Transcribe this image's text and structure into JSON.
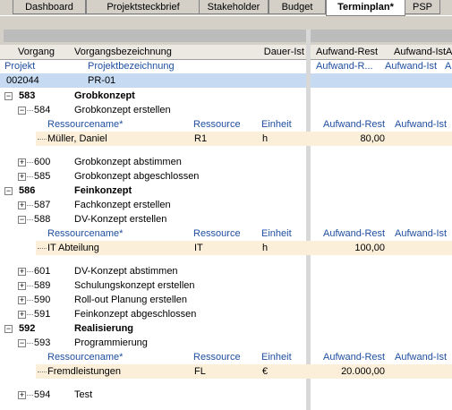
{
  "tabs": [
    "Dashboard",
    "Projektsteckbrief",
    "Stakeholder",
    "Budget",
    "Terminplan*",
    "PSP"
  ],
  "columns": [
    "Vorgang",
    "Vorgangsbezeichnung",
    "Dauer-Ist",
    "Aufwand-Rest",
    "Aufwand-Ist",
    "A"
  ],
  "project_header": [
    "Projekt",
    "Projektbezeichnung",
    "Aufwand-R...",
    "Aufwand-Ist",
    "Aufwand-Ist"
  ],
  "project": {
    "id": "002044",
    "name": "PR-01"
  },
  "resource_header": [
    "Ressourcename*",
    "Ressource",
    "Einheit",
    "Aufwand-Rest",
    "Aufwand-Ist"
  ],
  "phases": [
    {
      "id": "583",
      "name": "Grobkonzept",
      "tasks": [
        {
          "id": "584",
          "name": "Grobkonzept erstellen",
          "resources": [
            {
              "name": "Müller, Daniel",
              "resource": "R1",
              "unit": "h",
              "aufwand_rest": "80,00"
            }
          ]
        },
        {
          "id": "600",
          "name": "Grobkonzept abstimmen"
        },
        {
          "id": "585",
          "name": "Grobkonzept abgeschlossen"
        }
      ]
    },
    {
      "id": "586",
      "name": "Feinkonzept",
      "tasks": [
        {
          "id": "587",
          "name": "Fachkonzept erstellen"
        },
        {
          "id": "588",
          "name": "DV-Konzept erstellen",
          "resources": [
            {
              "name": "IT Abteilung",
              "resource": "IT",
              "unit": "h",
              "aufwand_rest": "100,00"
            }
          ]
        },
        {
          "id": "601",
          "name": "DV-Konzept abstimmen"
        },
        {
          "id": "589",
          "name": "Schulungskonzept erstellen"
        },
        {
          "id": "590",
          "name": "Roll-out Planung erstellen"
        },
        {
          "id": "591",
          "name": "Feinkonzept abgeschlossen"
        }
      ]
    },
    {
      "id": "592",
      "name": "Realisierung",
      "tasks": [
        {
          "id": "593",
          "name": "Programmierung",
          "resources": [
            {
              "name": "Fremdleistungen",
              "resource": "FL",
              "unit": "€",
              "aufwand_rest": "20.000,00"
            }
          ]
        },
        {
          "id": "594",
          "name": "Test"
        }
      ]
    }
  ]
}
